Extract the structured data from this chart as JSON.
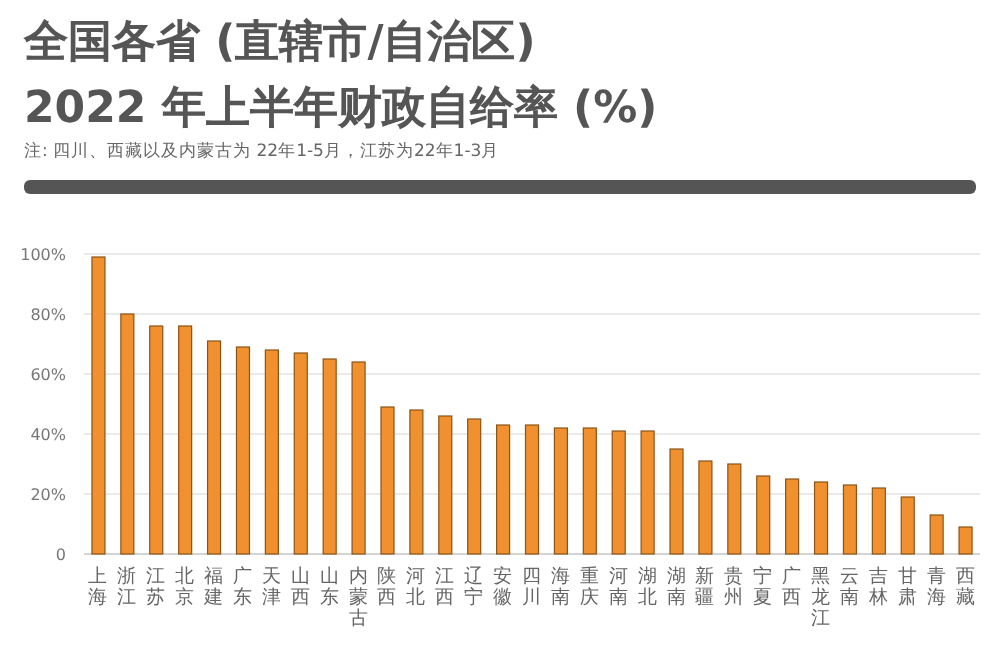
{
  "chart_data": {
    "type": "bar",
    "title": "全国各省 (直辖市/自治区)",
    "subtitle": "2022 年上半年财政自给率 (%)",
    "annotations": [
      "注: 四川、西藏以及内蒙古为 22年1-5月，江苏为22年1-3月"
    ],
    "categories": [
      "上海",
      "浙江",
      "江苏",
      "北京",
      "福建",
      "广东",
      "天津",
      "山西",
      "山东",
      "内蒙古",
      "陕西",
      "河北",
      "江西",
      "辽宁",
      "安徽",
      "四川",
      "海南",
      "重庆",
      "河南",
      "湖北",
      "湖南",
      "新疆",
      "贵州",
      "宁夏",
      "广西",
      "黑龙江",
      "云南",
      "吉林",
      "甘肃",
      "青海",
      "西藏"
    ],
    "values": [
      99,
      80,
      76,
      76,
      71,
      69,
      68,
      67,
      65,
      64,
      49,
      48,
      46,
      45,
      43,
      43,
      42,
      42,
      41,
      41,
      35,
      31,
      30,
      26,
      25,
      24,
      23,
      22,
      19,
      13,
      9
    ],
    "color": "#f0902e",
    "ylim": [
      0,
      100
    ],
    "yticks": [
      0,
      {
        "value": 20,
        "label": "20%"
      },
      {
        "value": 40,
        "label": "40%"
      },
      {
        "value": 60,
        "label": "60%"
      },
      {
        "value": 80,
        "label": "80%"
      },
      {
        "value": 100,
        "label": "100%"
      }
    ],
    "grid": "y"
  }
}
